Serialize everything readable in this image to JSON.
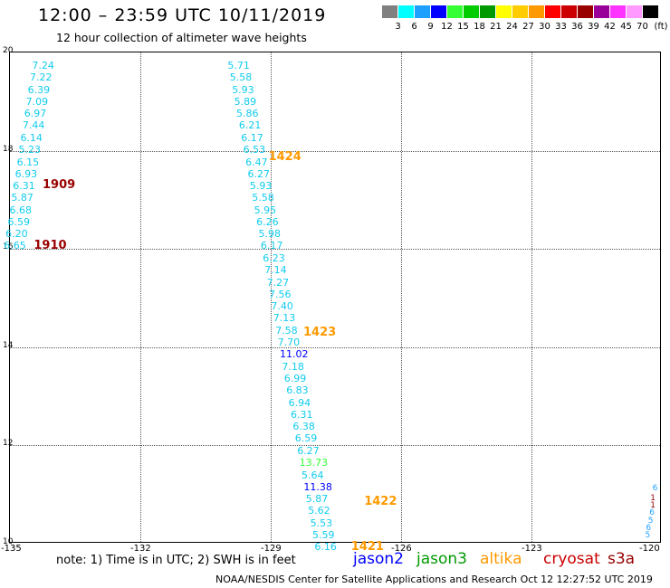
{
  "header": {
    "title": "12:00 – 23:59 UTC 10/11/2019",
    "subtitle": "12 hour collection of altimeter wave heights"
  },
  "legend": {
    "unit": "(ft)",
    "colors": [
      "#808080",
      "#00ffff",
      "#1ea0ff",
      "#0000ff",
      "#33ff33",
      "#00cc00",
      "#009900",
      "#ffff00",
      "#ffcc00",
      "#ff9900",
      "#ff0000",
      "#cc0000",
      "#990000",
      "#990099",
      "#ff33ff",
      "#ff99ff",
      "#000000"
    ],
    "labels": [
      "3",
      "6",
      "9",
      "12",
      "15",
      "18",
      "21",
      "24",
      "27",
      "30",
      "33",
      "36",
      "39",
      "42",
      "45",
      "70"
    ]
  },
  "map": {
    "lat_labels": [
      "20",
      "18",
      "16",
      "14",
      "12",
      "10"
    ],
    "lon_labels": [
      "-135",
      "-132",
      "-129",
      "-126",
      "-123",
      "-120"
    ],
    "lat_range": [
      10,
      20
    ],
    "lon_range": [
      -135,
      -120
    ]
  },
  "tracks": [
    {
      "label": "1909",
      "label_lat": 17.3,
      "label_lon": -134.0,
      "label_color": "#990000",
      "values": [
        {
          "v": "7.24",
          "lat": 19.72,
          "lon": -134.2
        },
        {
          "v": "7.22",
          "lat": 19.48,
          "lon": -134.25
        },
        {
          "v": "6.39",
          "lat": 19.23,
          "lon": -134.3
        },
        {
          "v": "7.09",
          "lat": 18.99,
          "lon": -134.34
        },
        {
          "v": "6.97",
          "lat": 18.74,
          "lon": -134.38
        },
        {
          "v": "7.44",
          "lat": 18.5,
          "lon": -134.42
        },
        {
          "v": "6.14",
          "lat": 18.25,
          "lon": -134.47
        },
        {
          "v": "5.23",
          "lat": 18.01,
          "lon": -134.51
        },
        {
          "v": "6.15",
          "lat": 17.76,
          "lon": -134.55
        },
        {
          "v": "6.93",
          "lat": 17.52,
          "lon": -134.59
        },
        {
          "v": "6.31",
          "lat": 17.27,
          "lon": -134.64
        },
        {
          "v": "5.87",
          "lat": 17.03,
          "lon": -134.68
        },
        {
          "v": "6.68",
          "lat": 16.78,
          "lon": -134.72
        },
        {
          "v": "6.59",
          "lat": 16.54,
          "lon": -134.76
        },
        {
          "v": "6.20",
          "lat": 16.29,
          "lon": -134.81
        },
        {
          "v": "6.65",
          "lat": 16.05,
          "lon": -134.85
        }
      ]
    },
    {
      "label": "1910",
      "label_lat": 16.05,
      "label_lon": -134.2,
      "label_color": "#990000",
      "values": []
    },
    {
      "label": "1424",
      "label_lat": 17.87,
      "label_lon": -128.8,
      "label_color": "#ff9900",
      "values": [
        {
          "v": "5.71",
          "lat": 19.72,
          "lon": -129.7
        },
        {
          "v": "5.58",
          "lat": 19.48,
          "lon": -129.65
        },
        {
          "v": "5.93",
          "lat": 19.23,
          "lon": -129.6
        },
        {
          "v": "5.89",
          "lat": 18.99,
          "lon": -129.55
        },
        {
          "v": "5.86",
          "lat": 18.74,
          "lon": -129.5
        },
        {
          "v": "6.21",
          "lat": 18.5,
          "lon": -129.44
        },
        {
          "v": "6.17",
          "lat": 18.25,
          "lon": -129.39
        },
        {
          "v": "6.53",
          "lat": 18.01,
          "lon": -129.34
        },
        {
          "v": "6.47",
          "lat": 17.76,
          "lon": -129.29
        },
        {
          "v": "6.27",
          "lat": 17.52,
          "lon": -129.24
        },
        {
          "v": "5.93",
          "lat": 17.27,
          "lon": -129.19
        },
        {
          "v": "5.58",
          "lat": 17.03,
          "lon": -129.14
        },
        {
          "v": "5.95",
          "lat": 16.78,
          "lon": -129.09
        },
        {
          "v": "6.26",
          "lat": 16.54,
          "lon": -129.04
        },
        {
          "v": "5.98",
          "lat": 16.29,
          "lon": -128.99
        },
        {
          "v": "6.17",
          "lat": 16.05,
          "lon": -128.94
        },
        {
          "v": "6.23",
          "lat": 15.8,
          "lon": -128.89
        }
      ]
    },
    {
      "label": "1423",
      "label_lat": 14.3,
      "label_lon": -128.0,
      "label_color": "#ff9900",
      "values": [
        {
          "v": "7.14",
          "lat": 15.56,
          "lon": -128.85
        },
        {
          "v": "7.27",
          "lat": 15.31,
          "lon": -128.8
        },
        {
          "v": "7.56",
          "lat": 15.07,
          "lon": -128.75
        },
        {
          "v": "7.40",
          "lat": 14.82,
          "lon": -128.7
        },
        {
          "v": "7.13",
          "lat": 14.58,
          "lon": -128.65
        },
        {
          "v": "7.58",
          "lat": 14.33,
          "lon": -128.6
        },
        {
          "v": "7.70",
          "lat": 14.09,
          "lon": -128.55
        },
        {
          "v": "11.02",
          "lat": 13.84,
          "lon": -128.5,
          "c": "#0000ff"
        },
        {
          "v": "7.18",
          "lat": 13.6,
          "lon": -128.45
        },
        {
          "v": "6.99",
          "lat": 13.35,
          "lon": -128.4
        },
        {
          "v": "6.83",
          "lat": 13.11,
          "lon": -128.35
        },
        {
          "v": "6.94",
          "lat": 12.86,
          "lon": -128.3
        },
        {
          "v": "6.31",
          "lat": 12.62,
          "lon": -128.25
        },
        {
          "v": "6.38",
          "lat": 12.37,
          "lon": -128.2
        },
        {
          "v": "6.59",
          "lat": 12.13,
          "lon": -128.15
        },
        {
          "v": "6.27",
          "lat": 11.88,
          "lon": -128.1
        }
      ]
    },
    {
      "label": "1422",
      "label_lat": 10.85,
      "label_lon": -126.6,
      "label_color": "#ff9900",
      "values": [
        {
          "v": "13.73",
          "lat": 11.64,
          "lon": -128.05,
          "c": "#33ff33"
        },
        {
          "v": "5.64",
          "lat": 11.39,
          "lon": -128.0
        },
        {
          "v": "11.38",
          "lat": 11.15,
          "lon": -127.95,
          "c": "#0000ff"
        },
        {
          "v": "5.87",
          "lat": 10.9,
          "lon": -127.9
        },
        {
          "v": "5.62",
          "lat": 10.66,
          "lon": -127.85
        },
        {
          "v": "5.53",
          "lat": 10.41,
          "lon": -127.8
        },
        {
          "v": "5.59",
          "lat": 10.17,
          "lon": -127.75
        },
        {
          "v": "6.16",
          "lat": 9.92,
          "lon": -127.7
        }
      ]
    },
    {
      "label": "1421",
      "label_lat": 9.92,
      "label_lon": -126.9,
      "label_color": "#ff9900",
      "values": []
    }
  ],
  "edge_values": [
    {
      "v": "6",
      "lat": 11.1,
      "lon": -120.05,
      "c": "#1ea0ff"
    },
    {
      "v": "1",
      "lat": 10.9,
      "lon": -120.1,
      "c": "#990000"
    },
    {
      "v": "1",
      "lat": 10.75,
      "lon": -120.1,
      "c": "#990000"
    },
    {
      "v": "6",
      "lat": 10.6,
      "lon": -120.12,
      "c": "#1ea0ff"
    },
    {
      "v": "5",
      "lat": 10.45,
      "lon": -120.15,
      "c": "#1ea0ff"
    },
    {
      "v": "6",
      "lat": 10.3,
      "lon": -120.2,
      "c": "#1ea0ff"
    },
    {
      "v": "5",
      "lat": 10.15,
      "lon": -120.22,
      "c": "#1ea0ff"
    }
  ],
  "footer": {
    "note": "note: 1) Time is in UTC; 2) SWH is in feet",
    "sat_jason2": "jason2",
    "sat_jason3": "jason3",
    "sat_altika": "altika",
    "sat_cryosat": "cryosat",
    "sat_s3a": "s3a",
    "credit": "NOAA/NESDIS Center for Satellite Applications and Research     Oct 12 12:27:52 UTC 2019"
  },
  "colors": {
    "value": "#11ccee",
    "jason2": "#0000ff",
    "jason3": "#009900",
    "altika": "#ff9900",
    "cryosat": "#cc0000",
    "s3a": "#990000"
  }
}
